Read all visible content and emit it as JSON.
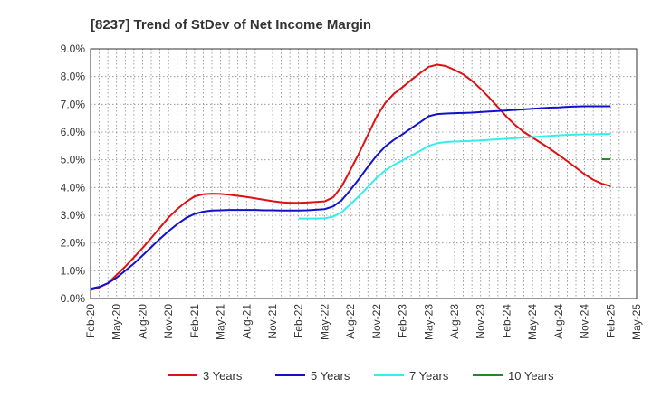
{
  "chart_data": {
    "type": "line",
    "title": "[8237]  Trend of StDev of Net Income Margin",
    "xlabel": "",
    "ylabel": "",
    "ylim": [
      0,
      9
    ],
    "yticks": [
      "0.0%",
      "1.0%",
      "2.0%",
      "3.0%",
      "4.0%",
      "5.0%",
      "6.0%",
      "7.0%",
      "8.0%",
      "9.0%"
    ],
    "xticks": [
      "Feb-20",
      "May-20",
      "Aug-20",
      "Nov-20",
      "Feb-21",
      "May-21",
      "Aug-21",
      "Nov-21",
      "Feb-22",
      "May-22",
      "Aug-22",
      "Nov-22",
      "Feb-23",
      "May-23",
      "Aug-23",
      "Nov-23",
      "Feb-24",
      "May-24",
      "Aug-24",
      "Nov-24",
      "Feb-25",
      "May-25"
    ],
    "grid": true,
    "legend_position": "bottom",
    "series": [
      {
        "name": "3 Years",
        "color": "#dd1111",
        "points": [
          [
            "Feb-20",
            0.3
          ],
          [
            "Mar-20",
            0.4
          ],
          [
            "Apr-20",
            0.55
          ],
          [
            "May-20",
            0.85
          ],
          [
            "Jun-20",
            1.15
          ],
          [
            "Jul-20",
            1.48
          ],
          [
            "Aug-20",
            1.82
          ],
          [
            "Sep-20",
            2.18
          ],
          [
            "Oct-20",
            2.55
          ],
          [
            "Nov-20",
            2.92
          ],
          [
            "Dec-20",
            3.22
          ],
          [
            "Jan-21",
            3.48
          ],
          [
            "Feb-21",
            3.68
          ],
          [
            "Mar-21",
            3.76
          ],
          [
            "Apr-21",
            3.78
          ],
          [
            "May-21",
            3.77
          ],
          [
            "Jun-21",
            3.74
          ],
          [
            "Jul-21",
            3.7
          ],
          [
            "Aug-21",
            3.66
          ],
          [
            "Sep-21",
            3.61
          ],
          [
            "Oct-21",
            3.56
          ],
          [
            "Nov-21",
            3.51
          ],
          [
            "Dec-21",
            3.47
          ],
          [
            "Jan-22",
            3.45
          ],
          [
            "Feb-22",
            3.45
          ],
          [
            "Mar-22",
            3.46
          ],
          [
            "Apr-22",
            3.48
          ],
          [
            "May-22",
            3.5
          ],
          [
            "Jun-22",
            3.65
          ],
          [
            "Jul-22",
            4.05
          ],
          [
            "Aug-22",
            4.65
          ],
          [
            "Sep-22",
            5.25
          ],
          [
            "Oct-22",
            5.9
          ],
          [
            "Nov-22",
            6.55
          ],
          [
            "Dec-22",
            7.05
          ],
          [
            "Jan-23",
            7.38
          ],
          [
            "Feb-23",
            7.62
          ],
          [
            "Mar-23",
            7.88
          ],
          [
            "Apr-23",
            8.12
          ],
          [
            "May-23",
            8.35
          ],
          [
            "Jun-23",
            8.43
          ],
          [
            "Jul-23",
            8.38
          ],
          [
            "Aug-23",
            8.24
          ],
          [
            "Sep-23",
            8.08
          ],
          [
            "Oct-23",
            7.85
          ],
          [
            "Nov-23",
            7.56
          ],
          [
            "Dec-23",
            7.24
          ],
          [
            "Jan-24",
            6.9
          ],
          [
            "Feb-24",
            6.55
          ],
          [
            "Mar-24",
            6.25
          ],
          [
            "Apr-24",
            6.0
          ],
          [
            "May-24",
            5.8
          ],
          [
            "Jun-24",
            5.6
          ],
          [
            "Jul-24",
            5.4
          ],
          [
            "Aug-24",
            5.18
          ],
          [
            "Sep-24",
            4.95
          ],
          [
            "Oct-24",
            4.72
          ],
          [
            "Nov-24",
            4.48
          ],
          [
            "Dec-24",
            4.28
          ],
          [
            "Jan-25",
            4.14
          ],
          [
            "Feb-25",
            4.05
          ]
        ]
      },
      {
        "name": "5 Years",
        "color": "#1111cc",
        "points": [
          [
            "Feb-20",
            0.35
          ],
          [
            "Mar-20",
            0.42
          ],
          [
            "Apr-20",
            0.55
          ],
          [
            "May-20",
            0.75
          ],
          [
            "Jun-20",
            1.0
          ],
          [
            "Jul-20",
            1.26
          ],
          [
            "Aug-20",
            1.55
          ],
          [
            "Sep-20",
            1.85
          ],
          [
            "Oct-20",
            2.15
          ],
          [
            "Nov-20",
            2.43
          ],
          [
            "Dec-20",
            2.68
          ],
          [
            "Jan-21",
            2.9
          ],
          [
            "Feb-21",
            3.05
          ],
          [
            "Mar-21",
            3.13
          ],
          [
            "Apr-21",
            3.17
          ],
          [
            "May-21",
            3.18
          ],
          [
            "Jun-21",
            3.19
          ],
          [
            "Jul-21",
            3.19
          ],
          [
            "Aug-21",
            3.19
          ],
          [
            "Sep-21",
            3.19
          ],
          [
            "Oct-21",
            3.18
          ],
          [
            "Nov-21",
            3.18
          ],
          [
            "Dec-21",
            3.17
          ],
          [
            "Jan-22",
            3.17
          ],
          [
            "Feb-22",
            3.17
          ],
          [
            "Mar-22",
            3.18
          ],
          [
            "Apr-22",
            3.2
          ],
          [
            "May-22",
            3.22
          ],
          [
            "Jun-22",
            3.32
          ],
          [
            "Jul-22",
            3.55
          ],
          [
            "Aug-22",
            3.92
          ],
          [
            "Sep-22",
            4.32
          ],
          [
            "Oct-22",
            4.75
          ],
          [
            "Nov-22",
            5.15
          ],
          [
            "Dec-22",
            5.48
          ],
          [
            "Jan-23",
            5.72
          ],
          [
            "Feb-23",
            5.92
          ],
          [
            "Mar-23",
            6.14
          ],
          [
            "Apr-23",
            6.35
          ],
          [
            "May-23",
            6.57
          ],
          [
            "Jun-23",
            6.65
          ],
          [
            "Jul-23",
            6.67
          ],
          [
            "Aug-23",
            6.68
          ],
          [
            "Sep-23",
            6.69
          ],
          [
            "Oct-23",
            6.7
          ],
          [
            "Nov-23",
            6.72
          ],
          [
            "Dec-23",
            6.74
          ],
          [
            "Jan-24",
            6.76
          ],
          [
            "Feb-24",
            6.78
          ],
          [
            "Mar-24",
            6.8
          ],
          [
            "Apr-24",
            6.82
          ],
          [
            "May-24",
            6.84
          ],
          [
            "Jun-24",
            6.86
          ],
          [
            "Jul-24",
            6.88
          ],
          [
            "Aug-24",
            6.89
          ],
          [
            "Sep-24",
            6.91
          ],
          [
            "Oct-24",
            6.92
          ],
          [
            "Nov-24",
            6.93
          ],
          [
            "Dec-24",
            6.93
          ],
          [
            "Jan-25",
            6.93
          ],
          [
            "Feb-25",
            6.93
          ]
        ]
      },
      {
        "name": "7 Years",
        "color": "#33eeee",
        "points": [
          [
            "Feb-22",
            2.88
          ],
          [
            "Mar-22",
            2.88
          ],
          [
            "Apr-22",
            2.88
          ],
          [
            "May-22",
            2.89
          ],
          [
            "Jun-22",
            2.95
          ],
          [
            "Jul-22",
            3.12
          ],
          [
            "Aug-22",
            3.4
          ],
          [
            "Sep-22",
            3.7
          ],
          [
            "Oct-22",
            4.02
          ],
          [
            "Nov-22",
            4.35
          ],
          [
            "Dec-22",
            4.62
          ],
          [
            "Jan-23",
            4.82
          ],
          [
            "Feb-23",
            4.98
          ],
          [
            "Mar-23",
            5.15
          ],
          [
            "Apr-23",
            5.32
          ],
          [
            "May-23",
            5.5
          ],
          [
            "Jun-23",
            5.6
          ],
          [
            "Jul-23",
            5.64
          ],
          [
            "Aug-23",
            5.66
          ],
          [
            "Sep-23",
            5.67
          ],
          [
            "Oct-23",
            5.68
          ],
          [
            "Nov-23",
            5.7
          ],
          [
            "Dec-23",
            5.72
          ],
          [
            "Jan-24",
            5.74
          ],
          [
            "Feb-24",
            5.76
          ],
          [
            "Mar-24",
            5.78
          ],
          [
            "Apr-24",
            5.8
          ],
          [
            "May-24",
            5.82
          ],
          [
            "Jun-24",
            5.84
          ],
          [
            "Jul-24",
            5.86
          ],
          [
            "Aug-24",
            5.88
          ],
          [
            "Sep-24",
            5.9
          ],
          [
            "Oct-24",
            5.91
          ],
          [
            "Nov-24",
            5.92
          ],
          [
            "Dec-24",
            5.92
          ],
          [
            "Jan-25",
            5.93
          ],
          [
            "Feb-25",
            5.93
          ]
        ]
      },
      {
        "name": "10 Years",
        "color": "#228822",
        "points": [
          [
            "Jan-25",
            5.02
          ],
          [
            "Feb-25",
            5.02
          ]
        ]
      }
    ]
  }
}
